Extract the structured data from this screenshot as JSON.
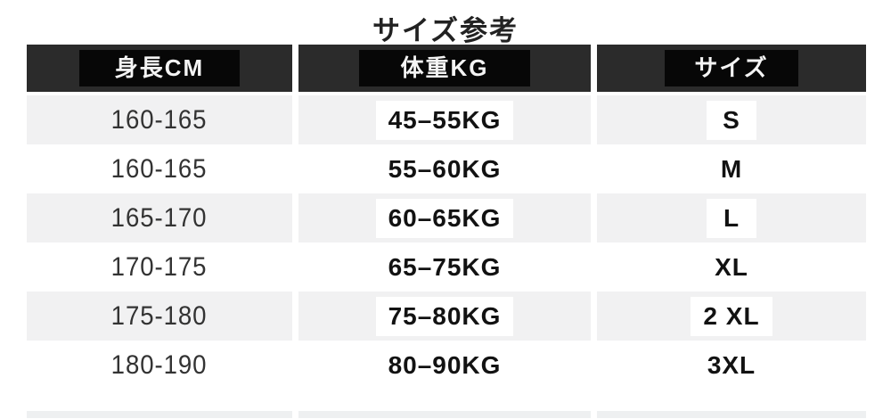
{
  "title": "サイズ参考",
  "table": {
    "headers": [
      {
        "label": "身長CM"
      },
      {
        "label": "体重KG"
      },
      {
        "label": "サイズ"
      }
    ],
    "rows": [
      {
        "height": "160-165",
        "weight": "45–55KG",
        "size": "S"
      },
      {
        "height": "160-165",
        "weight": "55–60KG",
        "size": "M"
      },
      {
        "height": "165-170",
        "weight": "60–65KG",
        "size": "L"
      },
      {
        "height": "170-175",
        "weight": "65–75KG",
        "size": "XL"
      },
      {
        "height": "175-180",
        "weight": "75–80KG",
        "size": "2 XL"
      },
      {
        "height": "180-190",
        "weight": "80–90KG",
        "size": "3XL"
      }
    ]
  },
  "colors": {
    "header_bar": "#2b2b2b",
    "header_label_box": "#070707",
    "header_text": "#f4f4f4",
    "row_alt_background": "#f1f1f2",
    "highlight_box": "#ffffff",
    "body_text": "#121212"
  }
}
